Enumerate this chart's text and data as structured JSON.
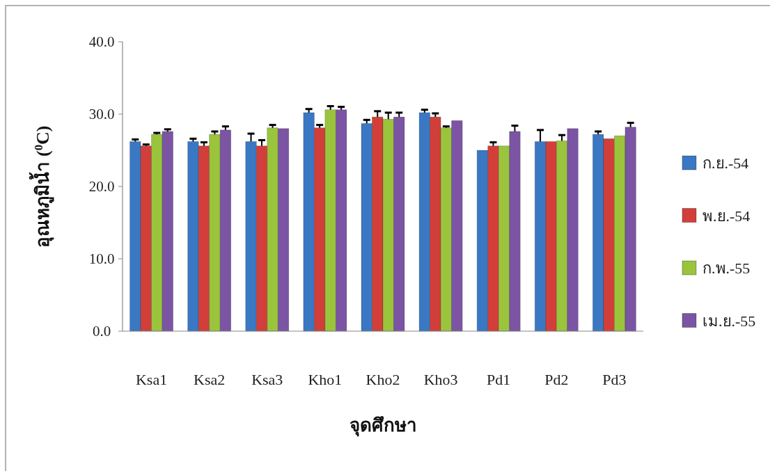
{
  "chart_data": {
    "type": "bar",
    "xlabel": "จุดศึกษา",
    "ylabel": "อุณหภูมิน้ำ ($^{0}$C)",
    "categories": [
      "Ksa1",
      "Ksa2",
      "Ksa3",
      "Kho1",
      "Kho2",
      "Kho3",
      "Pd1",
      "Pd2",
      "Pd3"
    ],
    "ylim": [
      0,
      40
    ],
    "yticks": [
      {
        "value": 0,
        "label": "0.0"
      },
      {
        "value": 10,
        "label": "10.0"
      },
      {
        "value": 20,
        "label": "20.0"
      },
      {
        "value": 30,
        "label": "30.0"
      },
      {
        "value": 40,
        "label": "40.0"
      }
    ],
    "legend": "right",
    "grid": false,
    "series": [
      {
        "name": "ก.ย.-54",
        "color": "#3a78c4",
        "values": [
          26.2,
          26.2,
          26.2,
          30.2,
          28.7,
          30.2,
          25.0,
          26.2,
          27.2
        ],
        "errors": [
          [
            26.2,
            26.5
          ],
          [
            26.2,
            26.6
          ],
          [
            26.2,
            27.3
          ],
          [
            30.2,
            30.7
          ],
          [
            28.7,
            29.2
          ],
          [
            30.2,
            30.6
          ],
          null,
          [
            26.2,
            27.8
          ],
          [
            27.2,
            27.6
          ]
        ]
      },
      {
        "name": "พ.ย.-54",
        "color": "#d23f3a",
        "values": [
          25.6,
          25.6,
          25.6,
          28.1,
          29.6,
          29.6,
          25.6,
          26.2,
          26.6
        ],
        "errors": [
          [
            25.6,
            25.8
          ],
          [
            25.6,
            26.1
          ],
          [
            25.6,
            26.4
          ],
          [
            28.1,
            28.5
          ],
          [
            29.6,
            30.4
          ],
          [
            29.6,
            30.1
          ],
          [
            25.6,
            26.1
          ],
          null,
          null
        ]
      },
      {
        "name": "ก.พ.-55",
        "color": "#9ac43c",
        "values": [
          27.2,
          27.2,
          28.1,
          30.6,
          29.3,
          28.1,
          25.6,
          26.3,
          27.0
        ],
        "errors": [
          [
            27.2,
            27.4
          ],
          [
            27.2,
            27.6
          ],
          [
            28.1,
            28.5
          ],
          [
            30.6,
            31.1
          ],
          [
            29.3,
            30.2
          ],
          [
            28.1,
            28.3
          ],
          null,
          [
            26.3,
            27.1
          ],
          null
        ]
      },
      {
        "name": "เม.ย.-55",
        "color": "#7b55a3",
        "values": [
          27.6,
          27.8,
          28.0,
          30.6,
          29.6,
          29.1,
          27.6,
          28.0,
          28.2
        ],
        "errors": [
          [
            27.6,
            27.9
          ],
          [
            27.8,
            28.3
          ],
          null,
          [
            30.6,
            31.0
          ],
          [
            29.6,
            30.2
          ],
          null,
          [
            27.6,
            28.4
          ],
          null,
          [
            28.2,
            28.8
          ]
        ]
      }
    ]
  }
}
